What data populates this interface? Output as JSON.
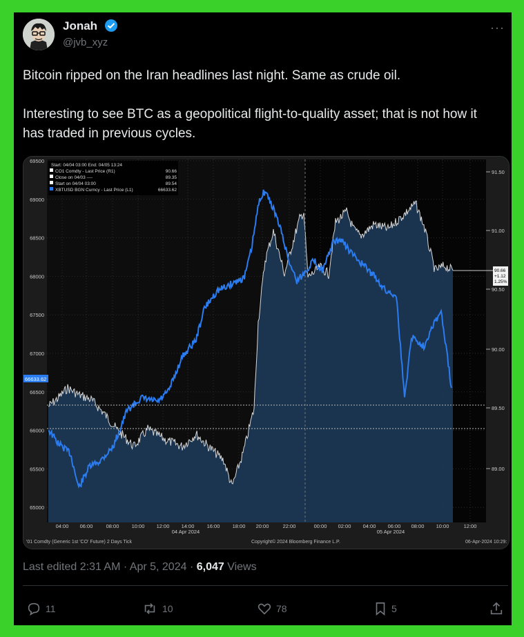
{
  "author": {
    "name": "Jonah",
    "handle": "@jvb_xyz"
  },
  "tweet": {
    "line1": "Bitcoin ripped on the Iran headlines last night. Same as crude oil.",
    "line2": "Interesting to see BTC as a geopolitical flight-to-quality asset; that is not how it has traded in previous cycles."
  },
  "meta": {
    "edited": "Last edited 2:31 AM · Apr 5, 2024 · ",
    "views_count": "6,047",
    "views_label": " Views"
  },
  "actions": {
    "replies": "11",
    "reposts": "10",
    "likes": "78",
    "bookmarks": "5"
  },
  "chart": {
    "legend": [
      "Start: 04/04 03:00 End: 04/05 13:24",
      "CO1 Comdty - Last Price (R1)",
      "Close on 04/03 ----",
      "Start on 04/04 03:00",
      "XBTUSD BGN Curncy - Last Price (L1)"
    ],
    "legend_values": [
      "90.66",
      "89.35",
      "89.54",
      "66633.62"
    ],
    "left_ticks": [
      "69500",
      "69000",
      "68500",
      "68000",
      "67500",
      "67000",
      "66500",
      "66000",
      "65500",
      "65000"
    ],
    "right_ticks": [
      "91.50",
      "91.00",
      "90.50",
      "90.00",
      "89.50",
      "89.00"
    ],
    "x_ticks": [
      "04:00",
      "06:00",
      "08:00",
      "10:00",
      "12:00",
      "14:00",
      "16:00",
      "18:00",
      "20:00",
      "22:00",
      "00:00",
      "02:00",
      "04:00",
      "06:00",
      "08:00",
      "10:00",
      "12:00"
    ],
    "date_left": "04 Apr 2024",
    "date_right": "05 Apr 2024",
    "btc_last": "66633.62",
    "oil_last": [
      "90.66",
      "+1.12",
      "1.25%"
    ],
    "footer_left": "'01 Comdty (Generic 1st 'CO' Future) 2 Days  Tick",
    "footer_center": "Copyright© 2024 Bloomberg Finance L.P.",
    "footer_right": "06-Apr-2024 10:29:",
    "colors": {
      "btc": "#2b7cf0",
      "oil": "#d8d8d8",
      "fill": "#1d3856"
    }
  }
}
